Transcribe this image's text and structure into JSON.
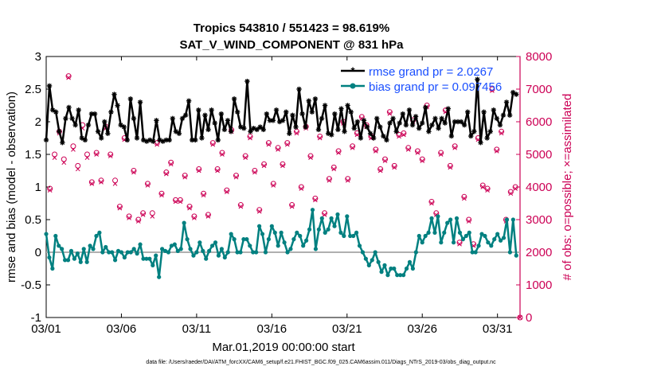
{
  "chart_data": {
    "type": "line",
    "title_line1": "Tropics 543810 / 551423 = 98.619%",
    "title_line2": "SAT_V_WIND_COMPONENT @ 831 hPa",
    "xlabel": "Mar.01,2019 00:00:00 start",
    "ylabel_left": "rmse and bias (model - observation)",
    "ylabel_right": "# of obs: o=possible; ×=assimilated",
    "x_range_days": [
      0,
      31.5
    ],
    "ylim_left": [
      -1,
      3
    ],
    "ylim_right": [
      0,
      8000
    ],
    "x_ticks": [
      {
        "day": 0,
        "label": "03/01"
      },
      {
        "day": 5,
        "label": "03/06"
      },
      {
        "day": 10,
        "label": "03/11"
      },
      {
        "day": 15,
        "label": "03/16"
      },
      {
        "day": 20,
        "label": "03/21"
      },
      {
        "day": 25,
        "label": "03/26"
      },
      {
        "day": 30,
        "label": "03/31"
      }
    ],
    "y_ticks_left": [
      "-1",
      "-0.5",
      "0",
      "0.5",
      "1",
      "1.5",
      "2",
      "2.5",
      "3"
    ],
    "y_ticks_right": [
      "0",
      "1000",
      "2000",
      "3000",
      "4000",
      "5000",
      "6000",
      "7000",
      "8000"
    ],
    "legend": [
      {
        "label": "rmse grand pr = 2.0267",
        "color": "#000000"
      },
      {
        "label": "bias grand pr = 0.097456",
        "color": "#008080"
      }
    ],
    "series": [
      {
        "name": "rmse",
        "axis": "left",
        "color": "#000000",
        "values": [
          1.72,
          2.55,
          2.18,
          2.15,
          1.85,
          1.68,
          2.05,
          2.22,
          2.05,
          1.95,
          2.18,
          1.75,
          1.72,
          1.95,
          2.12,
          2.12,
          1.85,
          1.75,
          2.0,
          1.82,
          2.15,
          2.42,
          2.25,
          1.95,
          1.92,
          1.72,
          2.35,
          2.05,
          1.75,
          2.3,
          1.72,
          1.7,
          1.72,
          1.7,
          2.02,
          1.72,
          1.7,
          1.72,
          1.72,
          2.05,
          1.85,
          1.82,
          2.05,
          2.1,
          2.32,
          1.72,
          1.72,
          2.18,
          1.75,
          2.1,
          1.88,
          2.18,
          1.98,
          1.72,
          2.12,
          1.88,
          2.02,
          1.85,
          2.35,
          2.15,
          1.92,
          1.9,
          2.62,
          1.85,
          1.9,
          1.88,
          1.92,
          1.88,
          2.12,
          2.02,
          2.02,
          2.18,
          2.0,
          2.02,
          2.15,
          1.82,
          2.1,
          1.92,
          2.5,
          2.12,
          1.92,
          2.32,
          2.15,
          2.35,
          1.88,
          2.05,
          2.25,
          1.82,
          1.8,
          2.12,
          1.88,
          2.2,
          1.85,
          2.25,
          2.15,
          1.9,
          2.0,
          1.75,
          2.02,
          1.92,
          1.82,
          1.75,
          2.05,
          1.92,
          1.78,
          1.72,
          1.98,
          2.05,
          1.85,
          1.98,
          2.12,
          1.95,
          2.18,
          1.95,
          2.08,
          1.9,
          1.98,
          2.22,
          1.85,
          1.95,
          2.05,
          1.9,
          2.05,
          1.98,
          2.2,
          1.78,
          2.0,
          2.0,
          2.0,
          1.95,
          2.15,
          1.78,
          1.85,
          2.65,
          1.68,
          2.15,
          1.75,
          1.85,
          2.18,
          2.05,
          1.95,
          2.1,
          2.3,
          2.1,
          2.45,
          2.42
        ]
      },
      {
        "name": "bias",
        "axis": "left",
        "color": "#008080",
        "values": [
          0.28,
          -0.08,
          -0.25,
          0.25,
          0.1,
          0.05,
          -0.12,
          -0.12,
          0.02,
          -0.1,
          -0.02,
          -0.15,
          0.05,
          -0.15,
          0.1,
          0.05,
          0.25,
          0.3,
          0.0,
          0.08,
          0.0,
          0.0,
          -0.12,
          0.02,
          0.0,
          -0.08,
          0.0,
          0.0,
          0.05,
          -0.02,
          0.12,
          -0.1,
          -0.1,
          -0.1,
          -0.2,
          -0.05,
          -0.38,
          0.05,
          0.02,
          0.0,
          0.1,
          0.12,
          0.02,
          0.05,
          0.45,
          0.2,
          0.05,
          -0.05,
          0.0,
          0.15,
          0.02,
          -0.1,
          0.02,
          0.1,
          0.15,
          -0.05,
          0.05,
          -0.08,
          0.0,
          0.28,
          0.2,
          0.0,
          0.0,
          0.2,
          0.2,
          0.1,
          0.0,
          0.0,
          0.4,
          0.28,
          0.0,
          0.2,
          0.4,
          0.3,
          0.1,
          0.3,
          0.15,
          0.0,
          0.05,
          0.2,
          0.3,
          0.25,
          0.1,
          0.18,
          0.35,
          0.65,
          0.05,
          0.35,
          0.52,
          0.3,
          0.35,
          0.52,
          0.4,
          0.58,
          0.3,
          0.25,
          0.55,
          0.25,
          0.25,
          0.3,
          0.1,
          0.0,
          -0.1,
          -0.2,
          -0.12,
          0.0,
          -0.15,
          -0.3,
          -0.2,
          -0.35,
          -0.25,
          -0.25,
          -0.35,
          -0.35,
          -0.35,
          -0.25,
          -0.15,
          -0.25,
          0.0,
          0.25,
          0.15,
          0.25,
          0.3,
          0.52,
          0.3,
          0.55,
          0.15,
          0.3,
          0.45,
          0.5,
          0.15,
          0.52,
          0.3,
          0.2,
          0.25,
          0.3,
          0.0,
          0.0,
          0.1,
          0.28,
          0.25,
          0.15,
          0.1,
          0.2,
          0.28,
          0.18,
          0.22,
          0.5,
          0.0,
          0.5,
          -0.05
        ]
      },
      {
        "name": "obs possible",
        "axis": "right",
        "color": "#cc0055",
        "values": [
          3950,
          5000,
          5700,
          4850,
          7400,
          5250,
          4650,
          5900,
          5000,
          4150,
          5050,
          4200,
          5850,
          5000,
          4200,
          3400,
          5500,
          3100,
          4500,
          3000,
          3200,
          4100,
          3200,
          5350,
          3800,
          4450,
          4750,
          3600,
          3600,
          4350,
          3400,
          3100,
          4550,
          3800,
          3150,
          5350,
          4550,
          5050,
          3900,
          5750,
          4350,
          3450,
          4950,
          5550,
          4500,
          3300,
          4700,
          5350,
          4100,
          5200,
          4700,
          5350,
          3450,
          5700,
          4000,
          5850,
          4950,
          3650,
          5550,
          3200,
          4250,
          4600,
          5100,
          6000,
          4250,
          5250,
          5650,
          6150,
          5900,
          5550,
          5150,
          4550,
          4850,
          6300,
          4650,
          5600,
          5650,
          5200,
          6050,
          5100,
          4850,
          6500,
          3550,
          3200,
          5050,
          6350,
          4650,
          5250,
          2300,
          3700,
          3000,
          2250,
          5500,
          4050,
          3950,
          7000,
          5150,
          5700,
          3000,
          3850,
          4000,
          0
        ]
      },
      {
        "name": "obs assimilated",
        "axis": "right",
        "color": "#cc0055",
        "values": [
          3900,
          4900,
          5650,
          4750,
          7350,
          5150,
          4550,
          5800,
          4900,
          4100,
          5000,
          4150,
          5800,
          4950,
          4100,
          3350,
          5450,
          3050,
          4450,
          2950,
          3150,
          4050,
          3100,
          5300,
          3750,
          4400,
          4700,
          3550,
          3550,
          4300,
          3350,
          3050,
          4500,
          3750,
          3100,
          5300,
          4500,
          5000,
          3850,
          5700,
          4300,
          3400,
          4900,
          5500,
          4450,
          3250,
          4650,
          5300,
          4050,
          5150,
          4650,
          5300,
          3400,
          5650,
          3950,
          5800,
          4900,
          3600,
          5500,
          3150,
          4200,
          4550,
          5050,
          5950,
          4200,
          5200,
          5600,
          6100,
          5850,
          5500,
          5100,
          4500,
          4800,
          6250,
          4600,
          5550,
          5600,
          5150,
          6000,
          5050,
          4800,
          6450,
          3500,
          3150,
          5000,
          6300,
          4600,
          5200,
          2250,
          3650,
          2950,
          2200,
          5450,
          4000,
          3900,
          6950,
          5100,
          5650,
          2950,
          3800,
          3950,
          0
        ]
      }
    ]
  },
  "footer": "data file: /Users/raeder/DAI/ATM_forcXX/CAM6_setup/f.e21.FHIST_BGC.f09_025.CAM6assim.011/Diags_NTrS_2019-03/obs_diag_output.nc"
}
